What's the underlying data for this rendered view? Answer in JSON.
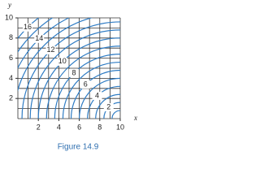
{
  "chart_data": {
    "type": "contour",
    "caption": "Figure 14.9",
    "xlabel": "x",
    "ylabel": "y",
    "xlim": [
      0,
      10
    ],
    "ylim": [
      0,
      10
    ],
    "xticks": [
      2,
      4,
      6,
      8,
      10
    ],
    "yticks": [
      2,
      4,
      6,
      8,
      10
    ],
    "grid": true,
    "color": "#2f7cc4",
    "levels": [
      2,
      4,
      6,
      8,
      10,
      12,
      14,
      16
    ]
  }
}
